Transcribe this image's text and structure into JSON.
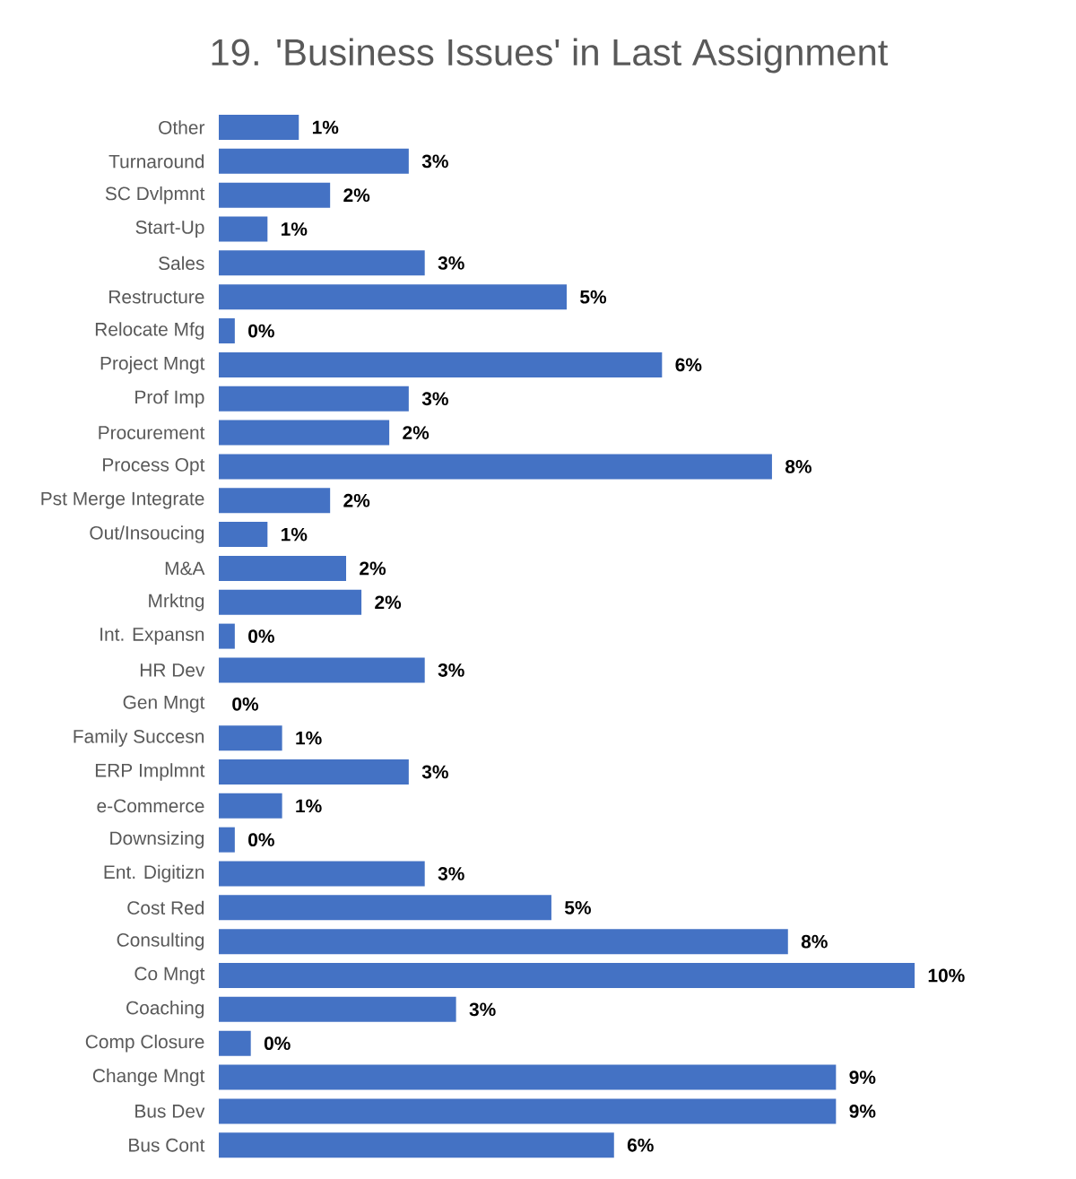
{
  "chart_data": {
    "type": "bar",
    "orientation": "horizontal",
    "title": "19. 'Business Issues' in Last Assignment",
    "categories": [
      "Other",
      "Turnaround",
      "SC Dvlpmnt",
      "Start-Up",
      "Sales",
      "Restructure",
      "Relocate Mfg",
      "Project Mngt",
      "Prof Imp",
      "Procurement",
      "Process Opt",
      "Pst Merge Integrate",
      "Out/Insoucing",
      "M&A",
      "Mrktng",
      "Int. Expansn",
      "HR Dev",
      "Gen Mngt",
      "Family Succesn",
      "ERP Implmnt",
      "e-Commerce",
      "Downsizing",
      "Ent. Digitizn",
      "Cost Red",
      "Consulting",
      "Co Mngt",
      "Coaching",
      "Comp Closure",
      "Change Mngt",
      "Bus Dev",
      "Bus Cont"
    ],
    "values": [
      1.15,
      2.73,
      1.6,
      0.7,
      2.96,
      5.0,
      0.23,
      6.37,
      2.73,
      2.45,
      7.95,
      1.6,
      0.7,
      1.83,
      2.05,
      0.23,
      2.96,
      0,
      0.91,
      2.73,
      0.91,
      0.23,
      2.96,
      4.78,
      8.18,
      10.0,
      3.41,
      0.46,
      8.87,
      8.87,
      5.68
    ],
    "value_labels": [
      "1%",
      "3%",
      "2%",
      "1%",
      "3%",
      "5%",
      "0%",
      "6%",
      "3%",
      "2%",
      "8%",
      "2%",
      "1%",
      "2%",
      "2%",
      "0%",
      "3%",
      "0%",
      "1%",
      "3%",
      "1%",
      "0%",
      "3%",
      "5%",
      "8%",
      "10%",
      "3%",
      "0%",
      "9%",
      "9%",
      "6%"
    ],
    "color": "#4472c4"
  }
}
